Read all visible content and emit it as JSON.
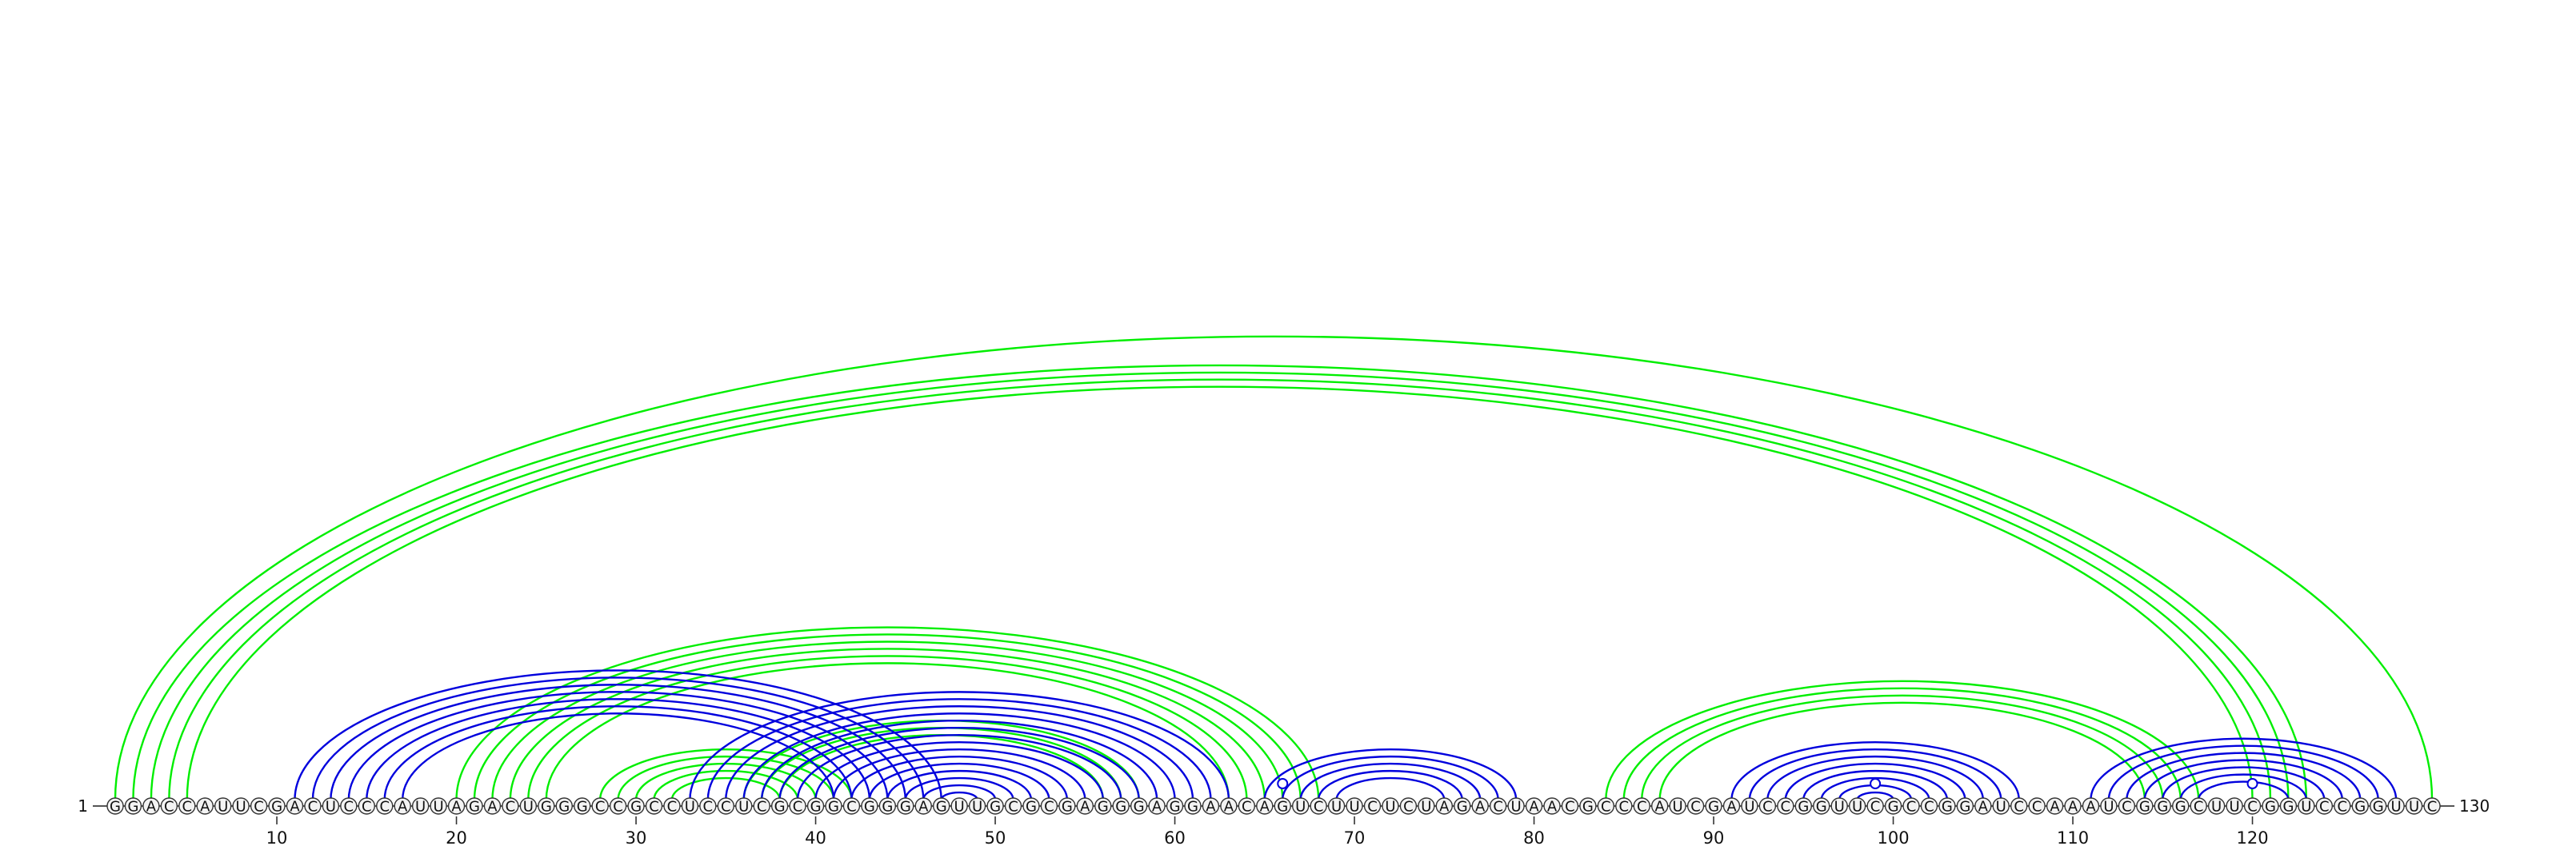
{
  "sequence": "GGACCAUUCGACUCCCAUUAGACUGGGCCGCCUCCUCGCGGCGGGAGUUGCGCGAGGGAGGAACAGUCUUCUCUAGACUAACGCCCAUCGAUCCGGUUCGCCGGAUCCAAAUCGGGCUUCGGUCCGGUUC",
  "start_label": "1",
  "end_label": "130",
  "tick_labels": [
    "10",
    "20",
    "30",
    "40",
    "50",
    "60",
    "70",
    "80",
    "90",
    "100",
    "110",
    "120"
  ],
  "colors": {
    "primary": "#00ee00",
    "secondary": "#0000dd",
    "text": "#111111",
    "circle_fill": "#f3f3f3"
  },
  "green_helices": [
    {
      "i": 2,
      "j": 123,
      "n": 4
    },
    {
      "i": 1,
      "j": 130,
      "n": 1
    },
    {
      "i": 20,
      "j": 68,
      "n": 6
    },
    {
      "i": 28,
      "j": 42,
      "n": 5
    },
    {
      "i": 36,
      "j": 58,
      "n": 3
    },
    {
      "i": 84,
      "j": 117,
      "n": 4
    }
  ],
  "blue_helices": [
    {
      "i": 11,
      "j": 47,
      "n": 7
    },
    {
      "i": 33,
      "j": 63,
      "n": 16
    },
    {
      "i": 65,
      "j": 79,
      "n": 5
    },
    {
      "i": 91,
      "j": 107,
      "n": 8
    },
    {
      "i": 111,
      "j": 128,
      "n": 7
    }
  ],
  "hairpin_markers": [
    66,
    99,
    120
  ]
}
